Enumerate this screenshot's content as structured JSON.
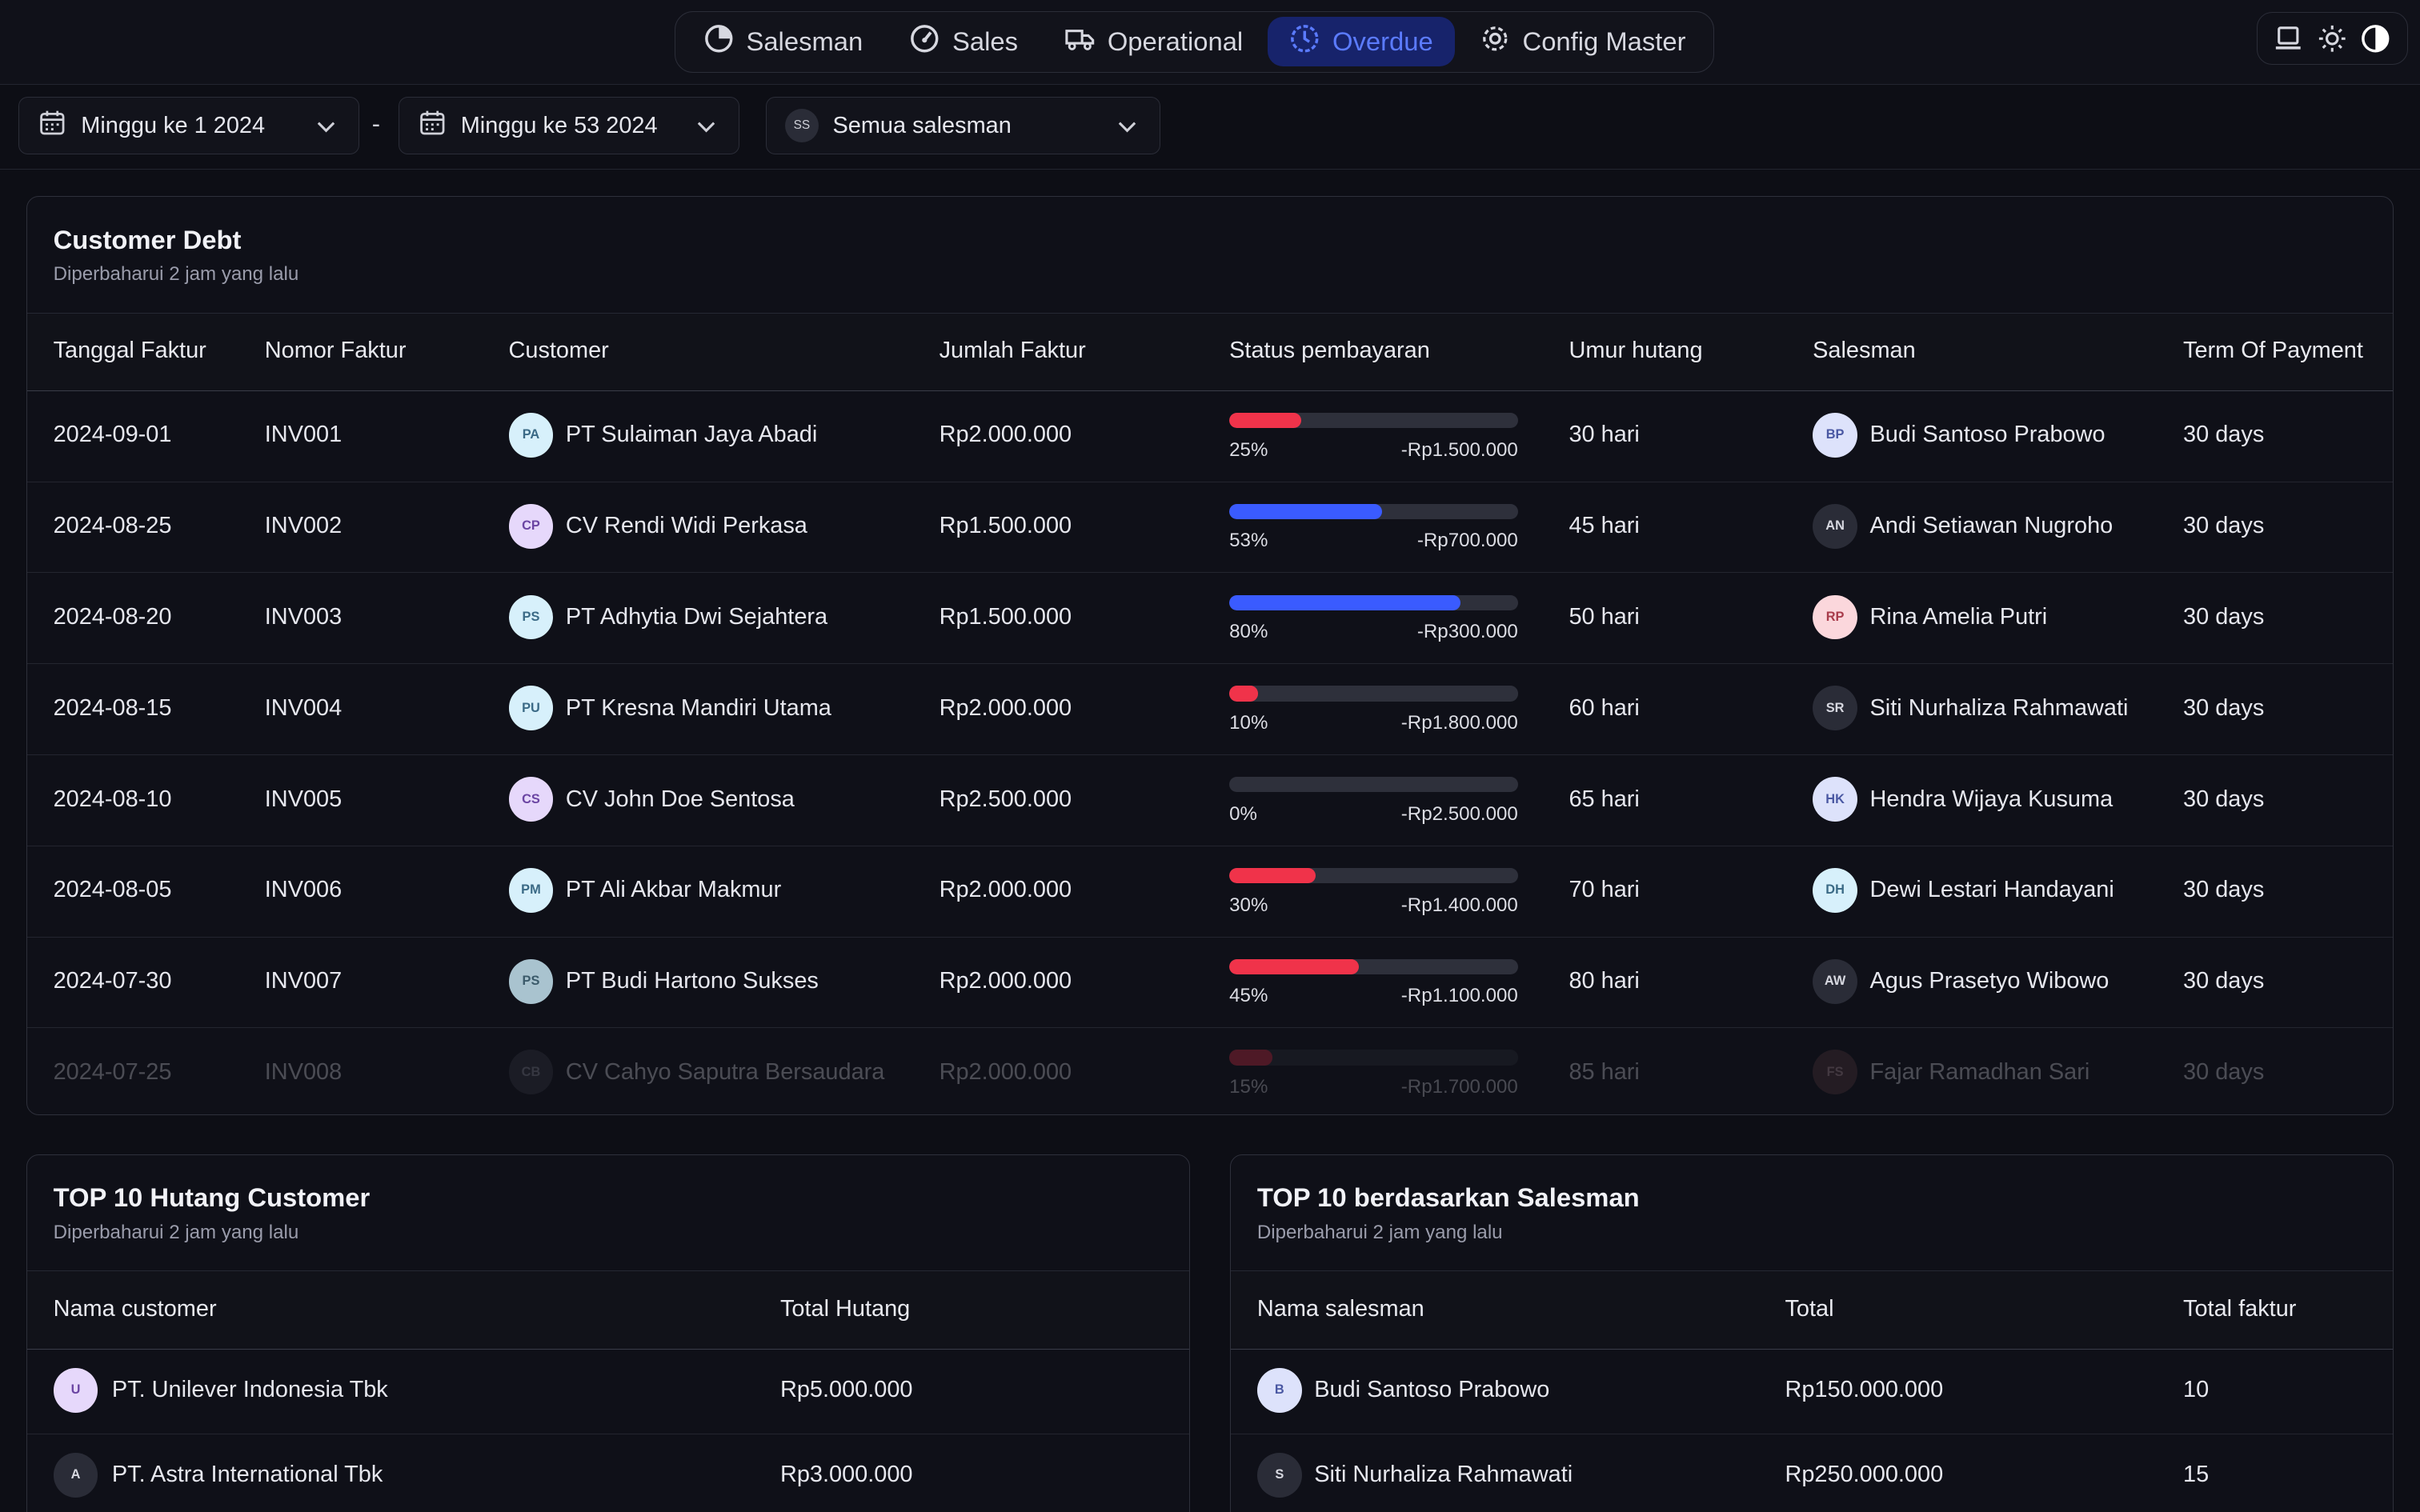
{
  "nav": {
    "items": [
      {
        "label": "Salesman",
        "icon": "pie-chart-icon"
      },
      {
        "label": "Sales",
        "icon": "gauge-icon"
      },
      {
        "label": "Operational",
        "icon": "truck-icon"
      },
      {
        "label": "Overdue",
        "icon": "clock-icon"
      },
      {
        "label": "Config Master",
        "icon": "gear-icon"
      }
    ],
    "active": "Overdue"
  },
  "filters": {
    "week_start": "Minggu ke 1 2024",
    "separator": "-",
    "week_end": "Minggu ke 53 2024",
    "salesman_badge": "SS",
    "salesman": "Semua salesman"
  },
  "customer_debt": {
    "title": "Customer Debt",
    "updated": "Diperbaharui 2 jam yang lalu",
    "columns": [
      "Tanggal Faktur",
      "Nomor Faktur",
      "Customer",
      "Jumlah Faktur",
      "Status pembayaran",
      "Umur hutang",
      "Salesman",
      "Term Of Payment"
    ],
    "rows": [
      {
        "date": "2024-09-01",
        "invoice": "INV001",
        "cust_initials": "PA",
        "customer": "PT Sulaiman Jaya Abadi",
        "amount": "Rp2.000.000",
        "pct": "25%",
        "paid": 0.25,
        "remaining": "-Rp1.500.000",
        "age": "30 hari",
        "sales_initials": "BP",
        "salesman": "Budi Santoso Prabowo",
        "term": "30 days"
      },
      {
        "date": "2024-08-25",
        "invoice": "INV002",
        "cust_initials": "CP",
        "customer": "CV Rendi Widi Perkasa",
        "amount": "Rp1.500.000",
        "pct": "53%",
        "paid": 0.53,
        "remaining": "-Rp700.000",
        "age": "45 hari",
        "sales_initials": "AN",
        "salesman": "Andi Setiawan Nugroho",
        "term": "30 days"
      },
      {
        "date": "2024-08-20",
        "invoice": "INV003",
        "cust_initials": "PS",
        "customer": "PT Adhytia Dwi Sejahtera",
        "amount": "Rp1.500.000",
        "pct": "80%",
        "paid": 0.8,
        "remaining": "-Rp300.000",
        "age": "50 hari",
        "sales_initials": "RP",
        "salesman": "Rina Amelia Putri",
        "term": "30 days"
      },
      {
        "date": "2024-08-15",
        "invoice": "INV004",
        "cust_initials": "PU",
        "customer": "PT Kresna Mandiri Utama",
        "amount": "Rp2.000.000",
        "pct": "10%",
        "paid": 0.1,
        "remaining": "-Rp1.800.000",
        "age": "60 hari",
        "sales_initials": "SR",
        "salesman": "Siti Nurhaliza Rahmawati",
        "term": "30 days"
      },
      {
        "date": "2024-08-10",
        "invoice": "INV005",
        "cust_initials": "CS",
        "customer": "CV John Doe Sentosa",
        "amount": "Rp2.500.000",
        "pct": "0%",
        "paid": 0.0,
        "remaining": "-Rp2.500.000",
        "age": "65 hari",
        "sales_initials": "HK",
        "salesman": "Hendra Wijaya Kusuma",
        "term": "30 days"
      },
      {
        "date": "2024-08-05",
        "invoice": "INV006",
        "cust_initials": "PM",
        "customer": "PT Ali Akbar Makmur",
        "amount": "Rp2.000.000",
        "pct": "30%",
        "paid": 0.3,
        "remaining": "-Rp1.400.000",
        "age": "70 hari",
        "sales_initials": "DH",
        "salesman": "Dewi Lestari Handayani",
        "term": "30 days"
      },
      {
        "date": "2024-07-30",
        "invoice": "INV007",
        "cust_initials": "PS",
        "customer": "PT Budi Hartono Sukses",
        "amount": "Rp2.000.000",
        "pct": "45%",
        "paid": 0.45,
        "remaining": "-Rp1.100.000",
        "age": "80 hari",
        "sales_initials": "AW",
        "salesman": "Agus Prasetyo Wibowo",
        "term": "30 days"
      },
      {
        "date": "2024-07-25",
        "invoice": "INV008",
        "cust_initials": "CB",
        "customer": "CV Cahyo Saputra Bersaudara",
        "amount": "Rp2.000.000",
        "pct": "15%",
        "paid": 0.15,
        "remaining": "-Rp1.700.000",
        "age": "85 hari",
        "sales_initials": "FS",
        "salesman": "Fajar Ramadhan Sari",
        "term": "30 days"
      }
    ]
  },
  "top_customer": {
    "title": "TOP 10 Hutang Customer",
    "updated": "Diperbaharui 2 jam yang lalu",
    "columns": [
      "Nama customer",
      "Total Hutang"
    ],
    "rows": [
      {
        "initial": "U",
        "name": "PT. Unilever Indonesia Tbk",
        "total": "Rp5.000.000"
      },
      {
        "initial": "A",
        "name": "PT. Astra International Tbk",
        "total": "Rp3.000.000"
      }
    ]
  },
  "top_salesman": {
    "title": "TOP 10 berdasarkan Salesman",
    "updated": "Diperbaharui 2 jam yang lalu",
    "columns": [
      "Nama salesman",
      "Total",
      "Total faktur"
    ],
    "rows": [
      {
        "initial": "B",
        "name": "Budi Santoso Prabowo",
        "total": "Rp150.000.000",
        "count": "10"
      },
      {
        "initial": "S",
        "name": "Siti Nurhaliza Rahmawati",
        "total": "Rp250.000.000",
        "count": "15"
      }
    ]
  },
  "colors": {
    "low_paid": "#f0334a",
    "high_paid": "#3a5bff",
    "active_nav_bg": "#17236b",
    "active_nav_text": "#5b7bff"
  }
}
